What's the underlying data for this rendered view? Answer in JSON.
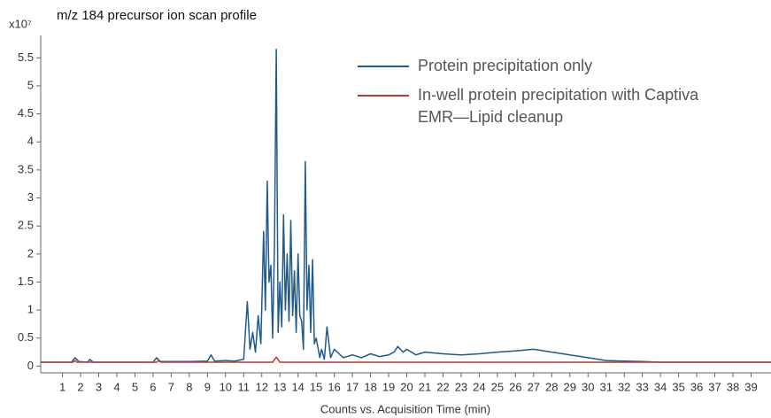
{
  "chart_data": {
    "type": "line",
    "title": "m/z 184 precursor ion scan profile",
    "y_multiplier": "x10⁷",
    "x_label": "Counts vs. Acquisition Time (min)",
    "xlim": [
      -0.2,
      40.1
    ],
    "ylim": [
      -0.12,
      5.9
    ],
    "xticks": [
      1,
      2,
      3,
      4,
      5,
      6,
      7,
      8,
      9,
      10,
      11,
      12,
      13,
      14,
      15,
      16,
      17,
      18,
      19,
      20,
      21,
      22,
      23,
      24,
      25,
      26,
      27,
      28,
      29,
      30,
      31,
      32,
      33,
      34,
      35,
      36,
      37,
      38,
      39
    ],
    "yticks": [
      0,
      0.5,
      1,
      1.5,
      2,
      2.5,
      3,
      3.5,
      4,
      4.5,
      5,
      5.5
    ],
    "legend": "top-right",
    "series": [
      {
        "name": "Protein precipitation only",
        "color": "#1f5a8a",
        "x": [
          -0.2,
          1.5,
          1.7,
          1.9,
          2.4,
          2.5,
          2.7,
          6.0,
          6.2,
          6.4,
          8.0,
          9.0,
          9.2,
          9.4,
          10.0,
          10.5,
          11.0,
          11.2,
          11.35,
          11.5,
          11.65,
          11.8,
          11.95,
          12.1,
          12.2,
          12.3,
          12.4,
          12.5,
          12.6,
          12.7,
          12.8,
          12.9,
          13.0,
          13.1,
          13.2,
          13.3,
          13.4,
          13.5,
          13.6,
          13.7,
          13.8,
          13.9,
          14.0,
          14.1,
          14.2,
          14.3,
          14.4,
          14.5,
          14.6,
          14.7,
          14.8,
          14.9,
          15.0,
          15.2,
          15.3,
          15.45,
          15.6,
          15.8,
          16.0,
          16.5,
          17.0,
          17.5,
          18.0,
          18.5,
          19.0,
          19.3,
          19.5,
          19.8,
          20.0,
          20.5,
          21.0,
          22.0,
          23.0,
          24.0,
          25.0,
          26.0,
          27.0,
          28.0,
          29.0,
          30.0,
          31.0,
          32.0,
          33.0,
          34.0,
          40.1
        ],
        "values": [
          0.07,
          0.07,
          0.15,
          0.08,
          0.07,
          0.12,
          0.07,
          0.07,
          0.15,
          0.08,
          0.08,
          0.09,
          0.2,
          0.09,
          0.1,
          0.09,
          0.12,
          1.15,
          0.3,
          0.6,
          0.25,
          0.9,
          0.4,
          2.4,
          1.0,
          3.3,
          1.5,
          1.8,
          0.5,
          2.2,
          5.65,
          0.6,
          1.5,
          0.7,
          2.7,
          1.0,
          2.0,
          0.8,
          2.6,
          0.9,
          1.7,
          0.6,
          2.0,
          0.9,
          0.8,
          0.3,
          3.65,
          1.0,
          1.8,
          0.6,
          1.9,
          0.4,
          0.5,
          0.15,
          0.3,
          0.12,
          0.7,
          0.15,
          0.3,
          0.15,
          0.2,
          0.15,
          0.22,
          0.17,
          0.2,
          0.25,
          0.35,
          0.25,
          0.3,
          0.2,
          0.25,
          0.22,
          0.2,
          0.22,
          0.25,
          0.27,
          0.3,
          0.25,
          0.2,
          0.15,
          0.1,
          0.09,
          0.08,
          0.07,
          0.07
        ]
      },
      {
        "name": "In-well protein precipitation with Captiva EMR—Lipid cleanup",
        "color": "#c0392b",
        "x": [
          -0.2,
          1.6,
          1.7,
          1.8,
          6.2,
          6.3,
          6.4,
          12.6,
          12.8,
          13.0,
          40.1
        ],
        "values": [
          0.07,
          0.07,
          0.1,
          0.07,
          0.07,
          0.1,
          0.07,
          0.07,
          0.16,
          0.07,
          0.07
        ]
      }
    ]
  }
}
